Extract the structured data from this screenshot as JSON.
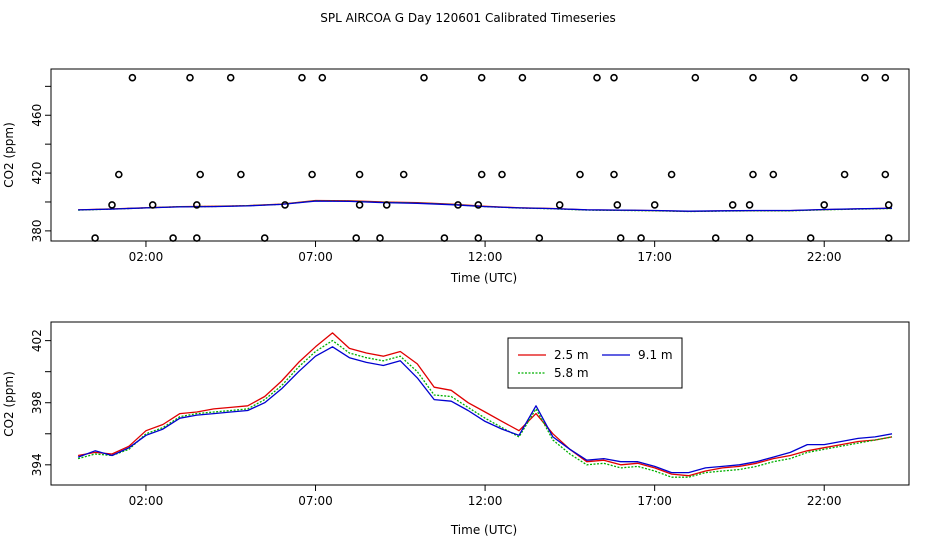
{
  "page_title": "SPL AIRCOA G  Day 120601  Calibrated Timeseries",
  "colors": {
    "2.5 m": "#e00000",
    "5.8 m": "#00b000",
    "9.1 m": "#0000d0",
    "points": "#000000"
  },
  "chart_data": [
    {
      "type": "scatter",
      "title": "",
      "xlabel": "Time (UTC)",
      "ylabel": "CO2 (ppm)",
      "xlim": [
        -0.8,
        24.5
      ],
      "ylim": [
        373,
        492
      ],
      "xticks": [
        2,
        7,
        12,
        17,
        22
      ],
      "xtick_labels": [
        "02:00",
        "07:00",
        "12:00",
        "17:00",
        "22:00"
      ],
      "yticks": [
        380,
        400,
        420,
        440,
        460,
        480
      ],
      "ytick_labels": [
        "380",
        "",
        "420",
        "",
        "460",
        ""
      ],
      "calibration_points": {
        "x": [
          1.6,
          3.3,
          4.5,
          6.6,
          7.2,
          10.2,
          11.9,
          13.1,
          15.3,
          15.8,
          18.2,
          19.9,
          21.1,
          23.2,
          23.8,
          1.2,
          3.6,
          4.8,
          6.9,
          8.3,
          9.6,
          11.9,
          12.5,
          14.8,
          15.8,
          17.5,
          19.9,
          20.5,
          22.6,
          23.8,
          1.0,
          2.2,
          3.5,
          6.1,
          8.3,
          9.1,
          11.2,
          11.8,
          14.2,
          15.9,
          17.0,
          19.3,
          19.8,
          22.0,
          23.9,
          0.5,
          2.8,
          3.5,
          5.5,
          8.2,
          8.9,
          10.8,
          11.8,
          13.6,
          16.0,
          16.6,
          18.8,
          19.8,
          21.6,
          23.9
        ],
        "y": [
          486,
          486,
          486,
          486,
          486,
          486,
          486,
          486,
          486,
          486,
          486,
          486,
          486,
          486,
          486,
          419,
          419,
          419,
          419,
          419,
          419,
          419,
          419,
          419,
          419,
          419,
          419,
          419,
          419,
          419,
          398,
          398,
          398,
          398,
          398,
          398,
          398,
          398,
          398,
          398,
          398,
          398,
          398,
          398,
          398,
          375,
          375,
          375,
          375,
          375,
          375,
          375,
          375,
          375,
          375,
          375,
          375,
          375,
          375,
          375
        ]
      },
      "series": [
        {
          "name": "2.5 m",
          "x": [
            0,
            1,
            2,
            3,
            4,
            5,
            6,
            7,
            8,
            9,
            10,
            11,
            12,
            13,
            14,
            15,
            16,
            17,
            18,
            19,
            20,
            21,
            22,
            23,
            24
          ],
          "values": [
            394.5,
            395.2,
            396,
            396.8,
            397,
            397.5,
            398.5,
            401,
            400.8,
            400,
            399.5,
            398.5,
            397,
            396,
            395.5,
            394.5,
            394.3,
            394,
            393.5,
            393.8,
            394,
            394,
            394.7,
            395.2,
            395.6
          ]
        },
        {
          "name": "5.8 m",
          "x": [
            0,
            1,
            2,
            3,
            4,
            5,
            6,
            7,
            8,
            9,
            10,
            11,
            12,
            13,
            14,
            15,
            16,
            17,
            18,
            19,
            20,
            21,
            22,
            23,
            24
          ],
          "values": [
            394.4,
            395.1,
            395.9,
            396.7,
            396.9,
            397.4,
            398.4,
            400.8,
            400.6,
            399.8,
            399.3,
            398.3,
            396.8,
            395.8,
            395.3,
            394.4,
            394.2,
            393.9,
            393.4,
            393.7,
            393.9,
            393.9,
            394.6,
            395.1,
            395.5
          ]
        },
        {
          "name": "9.1 m",
          "x": [
            0,
            1,
            2,
            3,
            4,
            5,
            6,
            7,
            8,
            9,
            10,
            11,
            12,
            13,
            14,
            15,
            16,
            17,
            18,
            19,
            20,
            21,
            22,
            23,
            24
          ],
          "values": [
            394.5,
            395.1,
            395.9,
            396.6,
            396.8,
            397.3,
            398.3,
            400.6,
            400.4,
            399.6,
            399.1,
            398.1,
            396.8,
            395.9,
            395.4,
            394.6,
            394.4,
            394.1,
            393.6,
            393.9,
            394.1,
            394.1,
            394.8,
            395.3,
            395.7
          ]
        }
      ]
    },
    {
      "type": "line",
      "title": "",
      "xlabel": "Time (UTC)",
      "ylabel": "CO2 (ppm)",
      "xlim": [
        -0.8,
        24.5
      ],
      "ylim": [
        392.7,
        403.2
      ],
      "xticks": [
        2,
        7,
        12,
        17,
        22
      ],
      "xtick_labels": [
        "02:00",
        "07:00",
        "12:00",
        "17:00",
        "22:00"
      ],
      "yticks": [
        394,
        396,
        398,
        400,
        402
      ],
      "ytick_labels": [
        "394",
        "",
        "398",
        "",
        "402"
      ],
      "legend": {
        "placement": "top-center",
        "entries": [
          "2.5 m",
          "5.8 m",
          "9.1 m"
        ]
      },
      "series": [
        {
          "name": "2.5 m",
          "x": [
            0,
            0.5,
            1,
            1.5,
            2,
            2.5,
            3,
            3.5,
            4,
            4.5,
            5,
            5.5,
            6,
            6.5,
            7,
            7.5,
            8,
            8.5,
            9,
            9.5,
            10,
            10.5,
            11,
            11.5,
            12,
            12.5,
            13,
            13.5,
            14,
            14.5,
            15,
            15.5,
            16,
            16.5,
            17,
            17.5,
            18,
            18.5,
            19,
            19.5,
            20,
            20.5,
            21,
            21.5,
            22,
            22.5,
            23,
            23.5,
            24
          ],
          "values": [
            394.6,
            394.8,
            394.7,
            395.2,
            396.2,
            396.6,
            397.3,
            397.4,
            397.6,
            397.7,
            397.8,
            398.4,
            399.4,
            400.6,
            401.6,
            402.5,
            401.5,
            401.2,
            401.0,
            401.3,
            400.5,
            399.0,
            398.8,
            398.0,
            397.4,
            396.8,
            396.2,
            397.3,
            396.0,
            395.0,
            394.2,
            394.3,
            394.0,
            394.1,
            393.8,
            393.4,
            393.3,
            393.6,
            393.8,
            393.9,
            394.1,
            394.4,
            394.6,
            394.9,
            395.1,
            395.3,
            395.5,
            395.6,
            395.8
          ]
        },
        {
          "name": "5.8 m",
          "x": [
            0,
            0.5,
            1,
            1.5,
            2,
            2.5,
            3,
            3.5,
            4,
            4.5,
            5,
            5.5,
            6,
            6.5,
            7,
            7.5,
            8,
            8.5,
            9,
            9.5,
            10,
            10.5,
            11,
            11.5,
            12,
            12.5,
            13,
            13.5,
            14,
            14.5,
            15,
            15.5,
            16,
            16.5,
            17,
            17.5,
            18,
            18.5,
            19,
            19.5,
            20,
            20.5,
            21,
            21.5,
            22,
            22.5,
            23,
            23.5,
            24
          ],
          "values": [
            394.4,
            394.7,
            394.6,
            395.0,
            396.0,
            396.4,
            397.1,
            397.3,
            397.4,
            397.5,
            397.6,
            398.2,
            399.1,
            400.3,
            401.3,
            402.0,
            401.2,
            400.9,
            400.7,
            401.0,
            400.0,
            398.5,
            398.4,
            397.7,
            397.0,
            396.4,
            395.8,
            397.6,
            395.6,
            394.7,
            394.0,
            394.1,
            393.8,
            393.9,
            393.6,
            393.2,
            393.2,
            393.5,
            393.6,
            393.7,
            393.9,
            394.2,
            394.4,
            394.8,
            395.0,
            395.2,
            395.4,
            395.6,
            395.8
          ]
        },
        {
          "name": "9.1 m",
          "x": [
            0,
            0.5,
            1,
            1.5,
            2,
            2.5,
            3,
            3.5,
            4,
            4.5,
            5,
            5.5,
            6,
            6.5,
            7,
            7.5,
            8,
            8.5,
            9,
            9.5,
            10,
            10.5,
            11,
            11.5,
            12,
            12.5,
            13,
            13.5,
            14,
            14.5,
            15,
            15.5,
            16,
            16.5,
            17,
            17.5,
            18,
            18.5,
            19,
            19.5,
            20,
            20.5,
            21,
            21.5,
            22,
            22.5,
            23,
            23.5,
            24
          ],
          "values": [
            394.5,
            394.9,
            394.6,
            395.1,
            395.9,
            396.3,
            397.0,
            397.2,
            397.3,
            397.4,
            397.5,
            398.0,
            398.9,
            400.0,
            401.0,
            401.6,
            400.9,
            400.6,
            400.4,
            400.7,
            399.6,
            398.2,
            398.1,
            397.5,
            396.8,
            396.3,
            395.9,
            397.8,
            395.8,
            395.0,
            394.3,
            394.4,
            394.2,
            394.2,
            393.9,
            393.5,
            393.5,
            393.8,
            393.9,
            394.0,
            394.2,
            394.5,
            394.8,
            395.3,
            395.3,
            395.5,
            395.7,
            395.8,
            396.0
          ]
        }
      ]
    }
  ]
}
